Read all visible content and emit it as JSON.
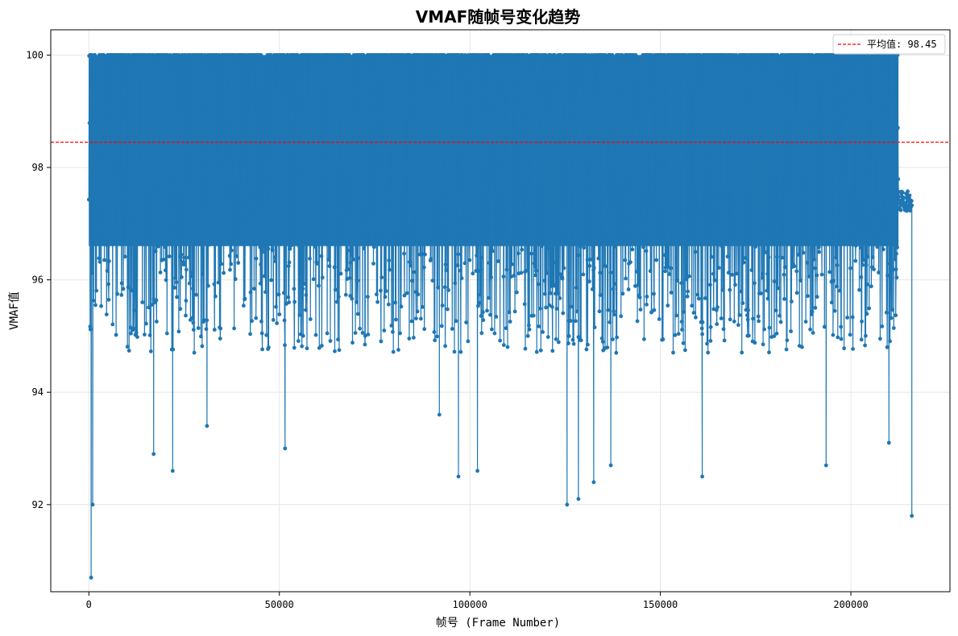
{
  "chart_data": {
    "type": "line",
    "title": "VMAF随帧号变化趋势",
    "xlabel": "帧号 (Frame Number)",
    "ylabel": "VMAF值",
    "xlim": [
      -10000,
      226000
    ],
    "ylim": [
      90.45,
      100.45
    ],
    "xticks": [
      0,
      50000,
      100000,
      150000,
      200000
    ],
    "xtick_labels": [
      "0",
      "50000",
      "100000",
      "150000",
      "200000"
    ],
    "yticks": [
      92,
      94,
      96,
      98,
      100
    ],
    "ytick_labels": [
      "92",
      "94",
      "96",
      "98",
      "100"
    ],
    "grid": true,
    "legend_position": "top-right",
    "series_color": "#1f77b4",
    "mean_line": {
      "value": 98.45,
      "label": "平均值: 98.45",
      "color": "#ff0000",
      "style": "dashed"
    },
    "frame_range": [
      0,
      216000
    ],
    "band": {
      "upper": 100,
      "typical_lower": 96.3
    },
    "extreme_dips": [
      {
        "x": 600,
        "y": 90.7
      },
      {
        "x": 1000,
        "y": 92.0
      },
      {
        "x": 17000,
        "y": 92.9
      },
      {
        "x": 22000,
        "y": 92.6
      },
      {
        "x": 31000,
        "y": 93.4
      },
      {
        "x": 51500,
        "y": 93.0
      },
      {
        "x": 92000,
        "y": 93.6
      },
      {
        "x": 97000,
        "y": 92.5
      },
      {
        "x": 102000,
        "y": 92.6
      },
      {
        "x": 125500,
        "y": 92.0
      },
      {
        "x": 128500,
        "y": 92.1
      },
      {
        "x": 132500,
        "y": 92.4
      },
      {
        "x": 137000,
        "y": 92.7
      },
      {
        "x": 161000,
        "y": 92.5
      },
      {
        "x": 193500,
        "y": 92.7
      },
      {
        "x": 210000,
        "y": 93.1
      },
      {
        "x": 216000,
        "y": 91.8
      }
    ],
    "tail_level": 97.4
  }
}
